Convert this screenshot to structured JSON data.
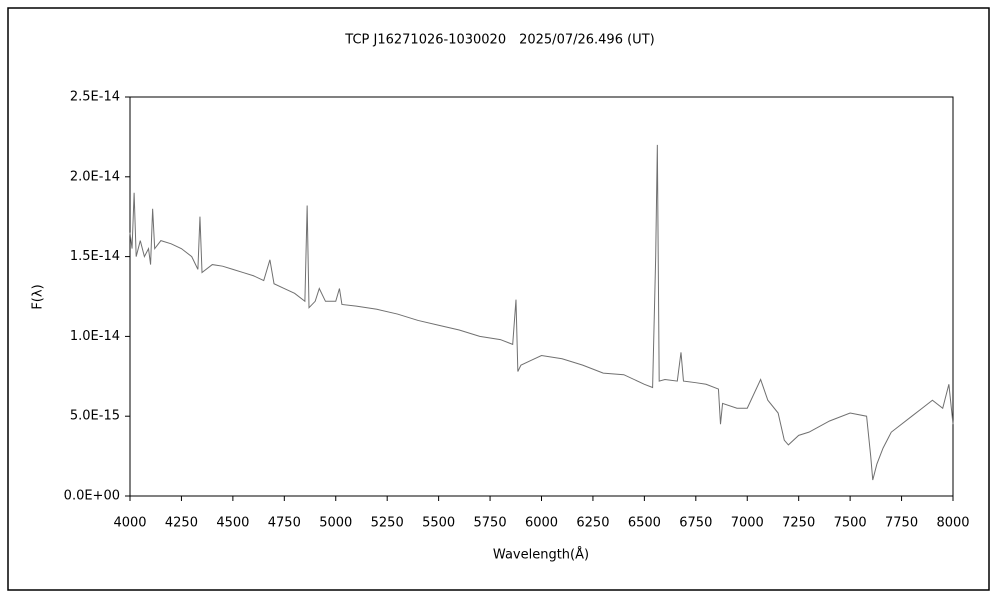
{
  "chart_data": {
    "type": "line",
    "title": "TCP J16271026-1030020　2025/07/26.496 (UT)",
    "x_label": "Wavelength(Å)",
    "y_label": "F(λ)",
    "x": [
      4000,
      4010,
      4020,
      4030,
      4050,
      4070,
      4090,
      4100,
      4110,
      4120,
      4150,
      4200,
      4250,
      4300,
      4330,
      4340,
      4350,
      4400,
      4450,
      4500,
      4550,
      4600,
      4650,
      4680,
      4700,
      4750,
      4800,
      4850,
      4861,
      4870,
      4900,
      4920,
      4950,
      5000,
      5018,
      5030,
      5100,
      5200,
      5300,
      5400,
      5500,
      5600,
      5700,
      5800,
      5860,
      5876,
      5885,
      5900,
      5950,
      6000,
      6100,
      6200,
      6300,
      6400,
      6500,
      6540,
      6555,
      6563,
      6572,
      6600,
      6660,
      6678,
      6690,
      6750,
      6800,
      6860,
      6870,
      6880,
      6950,
      7000,
      7065,
      7100,
      7150,
      7180,
      7200,
      7250,
      7300,
      7400,
      7500,
      7580,
      7600,
      7610,
      7630,
      7660,
      7700,
      7800,
      7850,
      7900,
      7950,
      7980,
      8000
    ],
    "series": [
      {
        "name": "F(λ)",
        "color": "#707070",
        "values": [
          1.65e-14,
          1.55e-14,
          1.9e-14,
          1.5e-14,
          1.6e-14,
          1.5e-14,
          1.55e-14,
          1.45e-14,
          1.8e-14,
          1.55e-14,
          1.6e-14,
          1.58e-14,
          1.55e-14,
          1.5e-14,
          1.42e-14,
          1.75e-14,
          1.4e-14,
          1.45e-14,
          1.44e-14,
          1.42e-14,
          1.4e-14,
          1.38e-14,
          1.35e-14,
          1.48e-14,
          1.33e-14,
          1.3e-14,
          1.27e-14,
          1.22e-14,
          1.82e-14,
          1.18e-14,
          1.22e-14,
          1.3e-14,
          1.22e-14,
          1.22e-14,
          1.3e-14,
          1.2e-14,
          1.19e-14,
          1.17e-14,
          1.14e-14,
          1.1e-14,
          1.07e-14,
          1.04e-14,
          1e-14,
          9.8e-15,
          9.5e-15,
          1.23e-14,
          7.8e-15,
          8.2e-15,
          8.5e-15,
          8.8e-15,
          8.6e-15,
          8.2e-15,
          7.7e-15,
          7.6e-15,
          7e-15,
          6.8e-15,
          1.5e-14,
          2.2e-14,
          7.2e-15,
          7.3e-15,
          7.2e-15,
          9e-15,
          7.2e-15,
          7.1e-15,
          7e-15,
          6.7e-15,
          4.5e-15,
          5.8e-15,
          5.5e-15,
          5.5e-15,
          7.3e-15,
          6e-15,
          5.2e-15,
          3.5e-15,
          3.2e-15,
          3.8e-15,
          4e-15,
          4.7e-15,
          5.2e-15,
          5e-15,
          2.5e-15,
          1e-15,
          2e-15,
          3e-15,
          4e-15,
          5e-15,
          5.5e-15,
          6e-15,
          5.5e-15,
          7e-15,
          4.5e-15
        ]
      }
    ],
    "xlim": [
      4000,
      8000
    ],
    "xticks": [
      4000,
      4250,
      4500,
      4750,
      5000,
      5250,
      5500,
      5750,
      6000,
      6250,
      6500,
      6750,
      7000,
      7250,
      7500,
      7750,
      8000
    ],
    "ylim": [
      0,
      2.5e-14
    ],
    "yticks": [
      {
        "value": 0,
        "label": "0.0E+00"
      },
      {
        "value": 5e-15,
        "label": "5.0E-15"
      },
      {
        "value": 1e-14,
        "label": "1.0E-14"
      },
      {
        "value": 1.5e-14,
        "label": "1.5E-14"
      },
      {
        "value": 2e-14,
        "label": "2.0E-14"
      },
      {
        "value": 2.5e-14,
        "label": "2.5E-14"
      }
    ],
    "grid": false
  }
}
